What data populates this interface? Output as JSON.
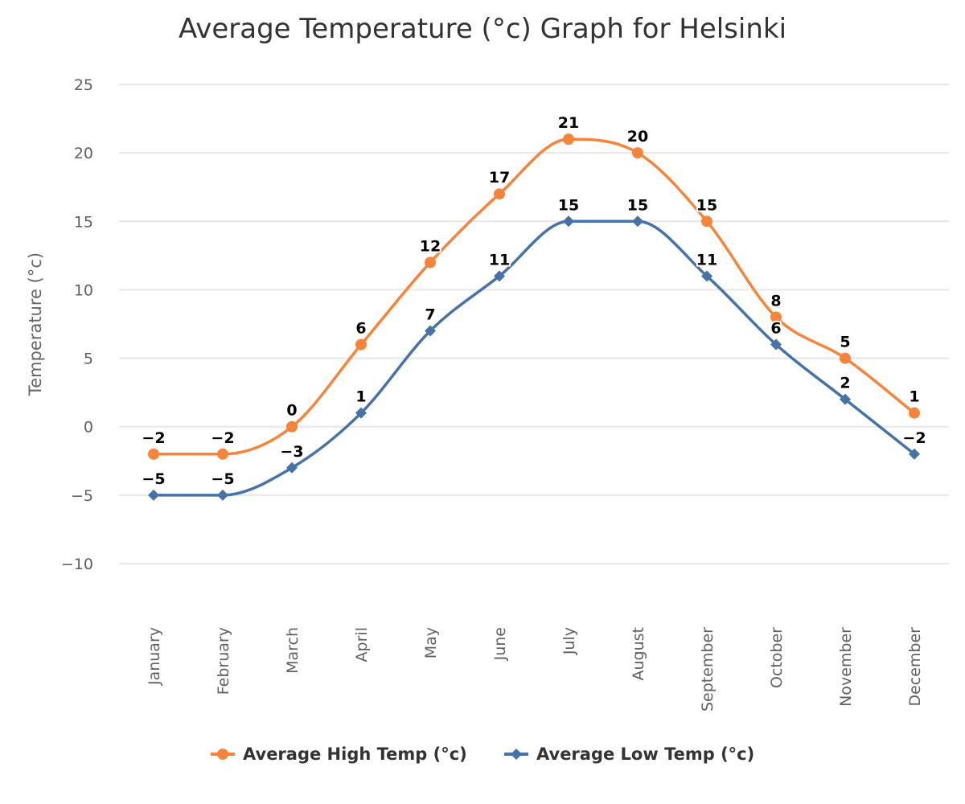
{
  "chart_data": {
    "type": "line",
    "title": "Average Temperature (°c) Graph for Helsinki",
    "ylabel": "Temperature (°c)",
    "xlabel": "",
    "ylim": [
      -10,
      25
    ],
    "yticks": [
      -10,
      -5,
      0,
      5,
      10,
      15,
      20,
      25
    ],
    "ytick_labels": [
      "−10",
      "−5",
      "0",
      "5",
      "10",
      "15",
      "20",
      "25"
    ],
    "grid": true,
    "legend_position": "bottom-center",
    "categories": [
      "January",
      "February",
      "March",
      "April",
      "May",
      "June",
      "July",
      "August",
      "September",
      "October",
      "November",
      "December"
    ],
    "series": [
      {
        "name": "Average High Temp (°c)",
        "color": "#f7843a",
        "marker": "circle",
        "values": [
          -2,
          -2,
          0,
          6,
          12,
          17,
          21,
          20,
          15,
          8,
          5,
          1
        ],
        "labels": [
          "−2",
          "−2",
          "0",
          "6",
          "12",
          "17",
          "21",
          "20",
          "15",
          "8",
          "5",
          "1"
        ]
      },
      {
        "name": "Average Low Temp (°c)",
        "color": "#4572a7",
        "marker": "diamond",
        "values": [
          -5,
          -5,
          -3,
          1,
          7,
          11,
          15,
          15,
          11,
          6,
          2,
          -2
        ],
        "labels": [
          "−5",
          "−5",
          "−3",
          "1",
          "7",
          "11",
          "15",
          "15",
          "11",
          "6",
          "2",
          "−2"
        ]
      }
    ]
  }
}
